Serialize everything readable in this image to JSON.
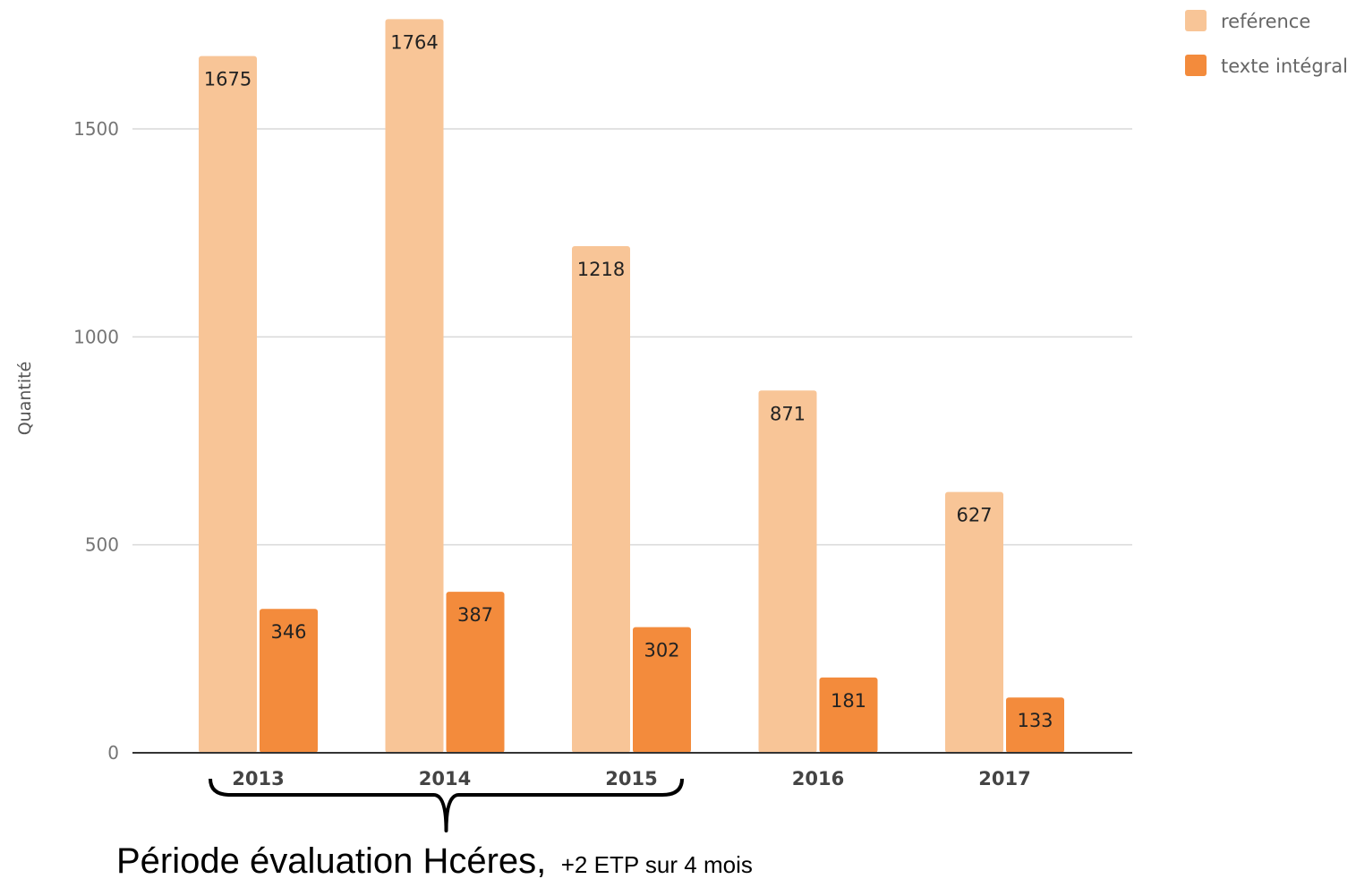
{
  "chart_data": {
    "type": "bar",
    "categories": [
      "2013",
      "2014",
      "2015",
      "2016",
      "2017"
    ],
    "series": [
      {
        "name": "reférence",
        "color": "#f8c597",
        "values": [
          1675,
          1764,
          1218,
          871,
          627
        ]
      },
      {
        "name": "texte intégral",
        "color": "#f38b3c",
        "values": [
          346,
          387,
          302,
          181,
          133
        ]
      }
    ],
    "ylabel": "Quantité",
    "yticks": [
      0,
      500,
      1000,
      1500
    ],
    "ylim": [
      0,
      1800
    ],
    "grid": true,
    "legend": "top-right",
    "data_labels": true
  },
  "annotation": {
    "text": "Période évaluation Hcéres,",
    "subtext": "+2 ETP sur 4 mois",
    "spans": [
      "2013",
      "2015"
    ]
  }
}
